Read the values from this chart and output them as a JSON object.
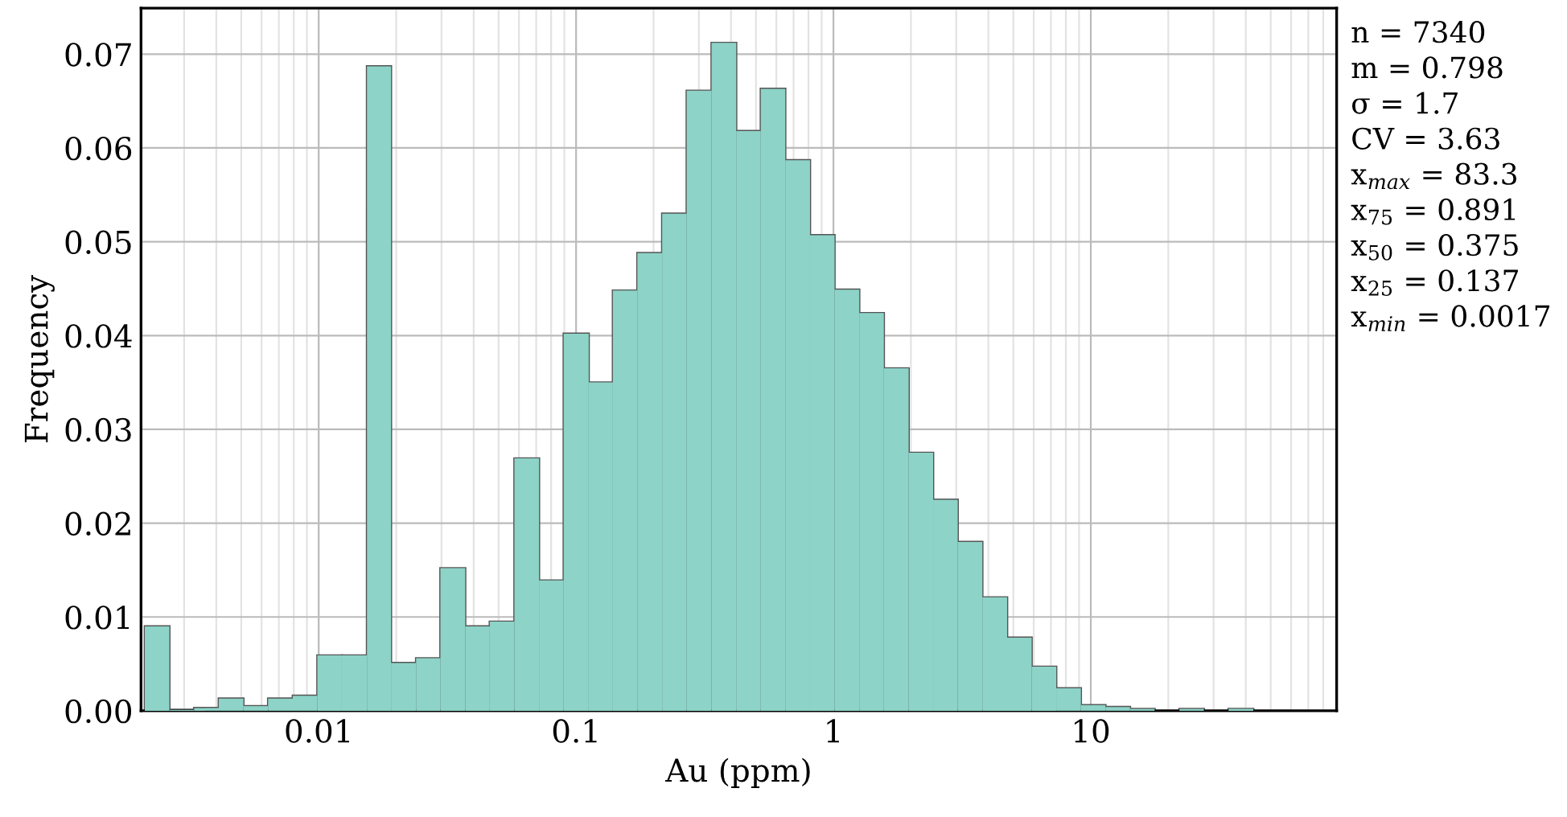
{
  "chart_data": {
    "type": "histogram",
    "xlabel": "Au (ppm)",
    "ylabel": "Frequency",
    "color": "#8dd3c7",
    "bins": [
      0.00211,
      0.00263,
      0.00328,
      0.00409,
      0.0051,
      0.00636,
      0.00793,
      0.00988,
      0.0123,
      0.0154,
      0.0191,
      0.0239,
      0.0297,
      0.0371,
      0.0462,
      0.0576,
      0.0718,
      0.0895,
      0.112,
      0.139,
      0.173,
      0.216,
      0.269,
      0.336,
      0.419,
      0.522,
      0.65,
      0.811,
      1.01,
      1.26,
      1.57,
      1.96,
      2.44,
      3.04,
      3.79,
      4.73,
      5.89,
      7.34,
      9.15,
      11.4,
      14.2,
      17.7,
      22.1,
      27.5,
      34.3,
      42.8
    ],
    "values": [
      0.009,
      0.0001,
      0.0003,
      0.0013,
      0.0005,
      0.0013,
      0.0016,
      0.0059,
      0.0059,
      0.0687,
      0.0051,
      0.0056,
      0.0152,
      0.009,
      0.0095,
      0.0269,
      0.0139,
      0.0402,
      0.035,
      0.0448,
      0.0488,
      0.053,
      0.0661,
      0.0712,
      0.0618,
      0.0663,
      0.0587,
      0.0507,
      0.0449,
      0.0424,
      0.0365,
      0.0275,
      0.0225,
      0.018,
      0.0121,
      0.0078,
      0.0047,
      0.0024,
      0.0006,
      0.0004,
      0.0002,
      0,
      0.0002,
      0,
      0.0002
    ],
    "log": "x",
    "xlim": [
      0.00204,
      90.2
    ],
    "xticks": [
      0.01,
      0.1,
      1,
      10
    ],
    "ylim": [
      0,
      0.0749
    ],
    "yticks": [
      {
        "value": 0,
        "label": "0.00"
      },
      {
        "value": 0.01,
        "label": "0.01"
      },
      {
        "value": 0.02,
        "label": "0.02"
      },
      {
        "value": 0.03,
        "label": "0.03"
      },
      {
        "value": 0.04,
        "label": "0.04"
      },
      {
        "value": 0.05,
        "label": "0.05"
      },
      {
        "value": 0.06,
        "label": "0.06"
      },
      {
        "value": 0.07,
        "label": "0.07"
      }
    ],
    "grid": true,
    "annotations": [
      "n = 7340",
      "m = 0.798",
      "σ = 1.7",
      "CV = 3.63",
      "x$_{max}$ = 83.3",
      "x$_{75}$ = 0.891",
      "x$_{50}$ = 0.375",
      "x$_{25}$ = 0.137",
      "x$_{min}$ = 0.0017"
    ]
  }
}
